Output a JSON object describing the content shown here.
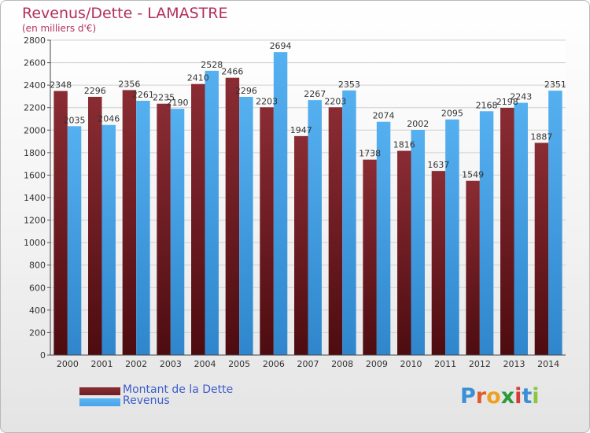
{
  "header": {
    "title": "Revenus/Dette - LAMASTRE",
    "subtitle": "(en milliers d'€)"
  },
  "logo": {
    "text": "Proxiti",
    "letters": [
      "P",
      "r",
      "o",
      "x",
      "i",
      "t",
      "i"
    ],
    "letter_colors": [
      "#3b8fd6",
      "#e05a2a",
      "#f0a020",
      "#2a9a3a",
      "#d83a3a",
      "#3b8fd6",
      "#8cc63f"
    ]
  },
  "colors": {
    "dette": "#6f1f24",
    "revenus": "#4aa3e8",
    "axis_text": "#333333",
    "grid": "#d0d0d0"
  },
  "chart_data": {
    "type": "bar",
    "title": "Revenus/Dette - LAMASTRE",
    "subtitle": "(en milliers d'€)",
    "categories": [
      "2000",
      "2001",
      "2002",
      "2003",
      "2004",
      "2005",
      "2006",
      "2007",
      "2008",
      "2009",
      "2010",
      "2011",
      "2012",
      "2013",
      "2014"
    ],
    "series": [
      {
        "name": "Montant de la Dette",
        "color": "#6f1f24",
        "values": [
          2348,
          2296,
          2356,
          2235,
          2410,
          2466,
          2203,
          1947,
          2203,
          1738,
          1816,
          1637,
          1549,
          2198,
          1887
        ],
        "labels": [
          "2348",
          "2296",
          "2356",
          "2235",
          "2410",
          "2466",
          "2203",
          "1947",
          "2203",
          "1738",
          "1816",
          "1637",
          "1549",
          "2198",
          "1887"
        ]
      },
      {
        "name": "Revenus",
        "color": "#4aa3e8",
        "values": [
          2035,
          2046,
          2261,
          2190,
          2528,
          2296,
          2694,
          2267,
          2353,
          2074,
          2002,
          2095,
          2168,
          2243,
          2351
        ],
        "labels": [
          "2035",
          "2046",
          "2261",
          "2190",
          "2528",
          "2296",
          "2694",
          "2267",
          "2353",
          "2074",
          "2002",
          "2095",
          "2168",
          "2243",
          "2351"
        ]
      }
    ],
    "ylim": [
      0,
      2800
    ],
    "yticks": [
      0,
      200,
      400,
      600,
      800,
      1000,
      1200,
      1400,
      1600,
      1800,
      2000,
      2200,
      2400,
      2600,
      2800
    ],
    "ytick_labels": [
      "0",
      "200",
      "400",
      "600",
      "800",
      "1000",
      "1200",
      "1400",
      "1600",
      "1800",
      "2000",
      "2200",
      "2400",
      "2600",
      "2800"
    ],
    "grid": true,
    "legend": "bottom-left"
  }
}
